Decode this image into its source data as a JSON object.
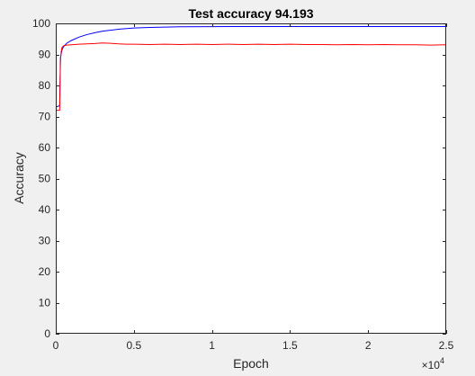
{
  "figure": {
    "background": "#f0f0f0",
    "axes_background": "#ffffff",
    "axes_color": "#262626"
  },
  "chart_data": {
    "type": "line",
    "title": "Test accuracy 94.193",
    "xlabel": "Epoch",
    "ylabel": "Accuracy",
    "xlim": [
      0,
      25000
    ],
    "ylim": [
      0,
      100
    ],
    "x_exponent_label": "×10",
    "x_exponent_power": "4",
    "xticks": [
      0,
      5000,
      10000,
      15000,
      20000,
      25000
    ],
    "xtick_labels": [
      "0",
      "0.5",
      "1",
      "1.5",
      "2",
      "2.5"
    ],
    "yticks": [
      0,
      10,
      20,
      30,
      40,
      50,
      60,
      70,
      80,
      90,
      100
    ],
    "ytick_labels": [
      "0",
      "10",
      "20",
      "30",
      "40",
      "50",
      "60",
      "70",
      "80",
      "90",
      "100"
    ],
    "grid": false,
    "box": true,
    "series": [
      {
        "color": "#0000ff",
        "x": [
          0,
          250,
          300,
          400,
          500,
          700,
          1000,
          1500,
          2000,
          2500,
          3000,
          4000,
          5000,
          6000,
          7000,
          8000,
          10000,
          12500,
          15000,
          17500,
          20000,
          22500,
          25000
        ],
        "y": [
          73,
          73.5,
          89,
          91.5,
          92.5,
          93.6,
          94.5,
          95.6,
          96.4,
          97.0,
          97.5,
          98.1,
          98.5,
          98.7,
          98.8,
          98.9,
          98.95,
          99.0,
          99.0,
          99.0,
          99.0,
          99.0,
          99.0
        ]
      },
      {
        "color": "#ff0000",
        "x": [
          0,
          250,
          300,
          350,
          400,
          500,
          700,
          1000,
          1500,
          2000,
          2500,
          3000,
          3500,
          4000,
          4500,
          5000,
          6000,
          7000,
          8000,
          9000,
          10000,
          11000,
          12000,
          13000,
          14000,
          15000,
          16000,
          17000,
          18000,
          19000,
          20000,
          21000,
          22000,
          23000,
          24000,
          25000
        ],
        "y": [
          72,
          72,
          88,
          91,
          92.2,
          92.8,
          93.0,
          93.1,
          93.3,
          93.4,
          93.5,
          93.7,
          93.6,
          93.4,
          93.3,
          93.3,
          93.2,
          93.3,
          93.2,
          93.3,
          93.2,
          93.3,
          93.2,
          93.3,
          93.2,
          93.3,
          93.2,
          93.2,
          93.1,
          93.2,
          93.1,
          93.2,
          93.1,
          93.1,
          93.0,
          93.1
        ]
      }
    ]
  }
}
